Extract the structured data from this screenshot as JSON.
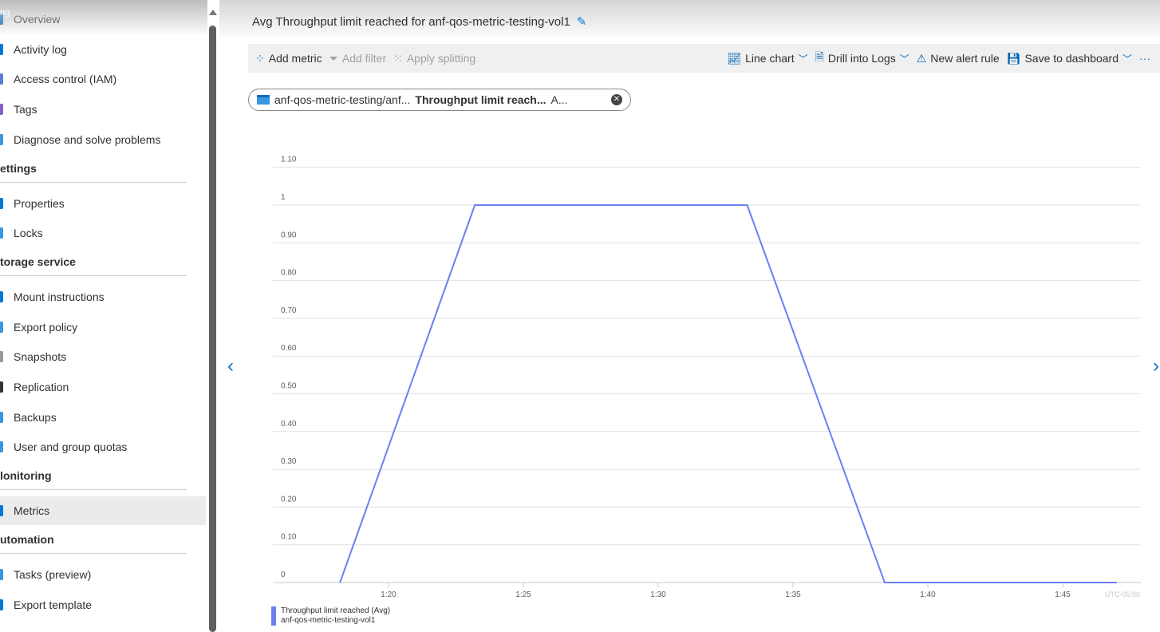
{
  "sidebar": {
    "partial_header": "ng",
    "items_top": [
      {
        "label": "Overview",
        "color": "#0078d4"
      },
      {
        "label": "Activity log",
        "color": "#0078d4"
      },
      {
        "label": "Access control (IAM)",
        "color": "#5c7ed6"
      },
      {
        "label": "Tags",
        "color": "#8661c5"
      },
      {
        "label": "Diagnose and solve problems",
        "color": "#3a96dd"
      }
    ],
    "sections": [
      {
        "title": "ettings",
        "items": [
          {
            "label": "Properties",
            "color": "#0078d4"
          },
          {
            "label": "Locks",
            "color": "#3a96dd"
          }
        ]
      },
      {
        "title": "torage service",
        "items": [
          {
            "label": "Mount instructions",
            "color": "#0078d4"
          },
          {
            "label": "Export policy",
            "color": "#3a96dd"
          },
          {
            "label": "Snapshots",
            "color": "#999999"
          },
          {
            "label": "Replication",
            "color": "#333333"
          },
          {
            "label": "Backups",
            "color": "#3a96dd"
          },
          {
            "label": "User and group quotas",
            "color": "#3a96dd"
          }
        ]
      },
      {
        "title": "lonitoring",
        "items": [
          {
            "label": "Metrics",
            "color": "#0078d4",
            "active": true
          }
        ]
      },
      {
        "title": "utomation",
        "items": [
          {
            "label": "Tasks (preview)",
            "color": "#3a96dd"
          },
          {
            "label": "Export template",
            "color": "#0078d4"
          }
        ]
      }
    ]
  },
  "header": {
    "title": "Avg Throughput limit reached for anf-qos-metric-testing-vol1"
  },
  "toolbar": {
    "add_metric": "Add metric",
    "add_filter": "Add filter",
    "apply_splitting": "Apply splitting",
    "line_chart": "Line chart",
    "drill_logs": "Drill into Logs",
    "new_alert": "New alert rule",
    "save_dashboard": "Save to dashboard",
    "more": "···"
  },
  "pill": {
    "resource": "anf-qos-metric-testing/anf...",
    "metric": "Throughput limit reach...",
    "agg": "A..."
  },
  "chart_data": {
    "type": "line",
    "x": [
      "1:18:12",
      "1:23:12",
      "1:33:18",
      "1:38:24",
      "1:47:00"
    ],
    "series": [
      {
        "name": "Throughput limit reached (Avg)",
        "subtitle": "anf-qos-metric-testing-vol1",
        "values": [
          0,
          1,
          1,
          0,
          0
        ],
        "color": "#6b7ff2"
      }
    ],
    "yticks": [
      "0",
      "0.10",
      "0.20",
      "0.30",
      "0.40",
      "0.50",
      "0.60",
      "0.70",
      "0.80",
      "0.90",
      "1",
      "1.10"
    ],
    "xticks": [
      "1:20",
      "1:25",
      "1:30",
      "1:35",
      "1:40",
      "1:45"
    ],
    "timezone": "UTC-05:00",
    "ylim": [
      0,
      1.1
    ],
    "grid": true,
    "legend": "bottom-left"
  }
}
